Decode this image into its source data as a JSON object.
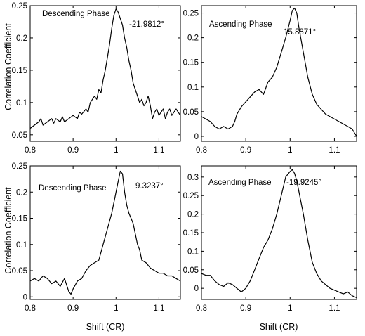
{
  "colors": {
    "line": "#000000",
    "background": "#ffffff"
  },
  "labels": {
    "ylabel_top": "Correlation Coefficient",
    "ylabel_bottom": "Correlation Coefficient",
    "xlabel_left": "Shift (CR)",
    "xlabel_right": "Shift (CR)"
  },
  "chart_data": [
    {
      "type": "line",
      "title": "",
      "xlabel": "",
      "ylabel": "Correlation Coefficient",
      "xlim": [
        0.8,
        1.15
      ],
      "ylim": [
        0.04,
        0.25
      ],
      "xticks": [
        0.8,
        0.9,
        1.0,
        1.1
      ],
      "xtick_labels": [
        "0.8",
        "0.9",
        "1",
        "1.1"
      ],
      "yticks": [
        0.05,
        0.1,
        0.15,
        0.2,
        0.25
      ],
      "ytick_labels": [
        "0.05",
        "0.1",
        "0.15",
        "0.2",
        "0.25"
      ],
      "grid": false,
      "annotations": [
        "Descending Phase",
        "-21.9812°"
      ],
      "series": [
        {
          "x": [
            0.8,
            0.81,
            0.82,
            0.825,
            0.83,
            0.84,
            0.85,
            0.855,
            0.86,
            0.87,
            0.875,
            0.88,
            0.89,
            0.9,
            0.91,
            0.915,
            0.92,
            0.93,
            0.935,
            0.94,
            0.95,
            0.955,
            0.96,
            0.965,
            0.97,
            0.975,
            0.98,
            0.985,
            0.99,
            0.995,
            1.0,
            1.005,
            1.01,
            1.015,
            1.02,
            1.025,
            1.03,
            1.035,
            1.04,
            1.045,
            1.05,
            1.055,
            1.06,
            1.065,
            1.07,
            1.075,
            1.08,
            1.085,
            1.09,
            1.095,
            1.1,
            1.105,
            1.11,
            1.115,
            1.12,
            1.125,
            1.13,
            1.135,
            1.14,
            1.145,
            1.15
          ],
          "y": [
            0.06,
            0.065,
            0.07,
            0.075,
            0.065,
            0.07,
            0.075,
            0.068,
            0.075,
            0.07,
            0.078,
            0.07,
            0.075,
            0.08,
            0.075,
            0.085,
            0.082,
            0.09,
            0.085,
            0.1,
            0.11,
            0.105,
            0.12,
            0.115,
            0.135,
            0.15,
            0.17,
            0.19,
            0.215,
            0.235,
            0.245,
            0.24,
            0.23,
            0.22,
            0.2,
            0.185,
            0.165,
            0.15,
            0.13,
            0.12,
            0.11,
            0.1,
            0.105,
            0.095,
            0.1,
            0.11,
            0.095,
            0.075,
            0.085,
            0.09,
            0.08,
            0.085,
            0.09,
            0.075,
            0.085,
            0.09,
            0.08,
            0.085,
            0.09,
            0.085,
            0.08
          ]
        }
      ]
    },
    {
      "type": "line",
      "title": "",
      "xlabel": "",
      "ylabel": "",
      "xlim": [
        0.8,
        1.15
      ],
      "ylim": [
        -0.01,
        0.265
      ],
      "xticks": [
        0.8,
        0.9,
        1.0,
        1.1
      ],
      "xtick_labels": [
        "0.8",
        "0.9",
        "1",
        "1.1"
      ],
      "yticks": [
        0,
        0.05,
        0.1,
        0.15,
        0.2,
        0.25
      ],
      "ytick_labels": [
        "0",
        "0.05",
        "0.1",
        "0.15",
        "0.2",
        "0.25"
      ],
      "grid": false,
      "annotations": [
        "Ascending Phase",
        "15.8871°"
      ],
      "series": [
        {
          "x": [
            0.8,
            0.81,
            0.82,
            0.83,
            0.84,
            0.85,
            0.86,
            0.87,
            0.875,
            0.88,
            0.89,
            0.9,
            0.91,
            0.92,
            0.93,
            0.94,
            0.95,
            0.96,
            0.97,
            0.98,
            0.99,
            1.0,
            1.005,
            1.01,
            1.015,
            1.02,
            1.03,
            1.04,
            1.05,
            1.06,
            1.07,
            1.08,
            1.09,
            1.1,
            1.11,
            1.12,
            1.13,
            1.14,
            1.15
          ],
          "y": [
            0.04,
            0.035,
            0.03,
            0.02,
            0.015,
            0.02,
            0.015,
            0.02,
            0.03,
            0.045,
            0.06,
            0.07,
            0.08,
            0.09,
            0.095,
            0.085,
            0.11,
            0.12,
            0.14,
            0.17,
            0.2,
            0.235,
            0.255,
            0.26,
            0.25,
            0.22,
            0.17,
            0.12,
            0.085,
            0.065,
            0.055,
            0.045,
            0.04,
            0.035,
            0.03,
            0.025,
            0.02,
            0.015,
            0.0
          ]
        }
      ]
    },
    {
      "type": "line",
      "title": "",
      "xlabel": "",
      "ylabel": "Correlation Coefficient",
      "xlim": [
        0.8,
        1.15
      ],
      "ylim": [
        -0.005,
        0.25
      ],
      "xticks": [
        0.8,
        0.9,
        1.0,
        1.1
      ],
      "xtick_labels": [
        "0.8",
        "0.9",
        "1",
        "1.1"
      ],
      "yticks": [
        0,
        0.05,
        0.1,
        0.15,
        0.2,
        0.25
      ],
      "ytick_labels": [
        "0",
        "0.05",
        "0.1",
        "0.15",
        "0.2",
        "0.25"
      ],
      "grid": false,
      "annotations": [
        "Descending Phase",
        "9.3237°"
      ],
      "series": [
        {
          "x": [
            0.8,
            0.81,
            0.82,
            0.83,
            0.84,
            0.85,
            0.86,
            0.87,
            0.88,
            0.89,
            0.895,
            0.9,
            0.91,
            0.92,
            0.93,
            0.94,
            0.95,
            0.96,
            0.97,
            0.98,
            0.99,
            1.0,
            1.005,
            1.01,
            1.015,
            1.02,
            1.025,
            1.03,
            1.035,
            1.04,
            1.045,
            1.05,
            1.055,
            1.06,
            1.07,
            1.08,
            1.09,
            1.1,
            1.11,
            1.12,
            1.13,
            1.14,
            1.15
          ],
          "y": [
            0.03,
            0.035,
            0.03,
            0.04,
            0.035,
            0.025,
            0.03,
            0.02,
            0.035,
            0.01,
            0.005,
            0.015,
            0.03,
            0.035,
            0.05,
            0.06,
            0.065,
            0.07,
            0.1,
            0.13,
            0.16,
            0.2,
            0.22,
            0.24,
            0.235,
            0.2,
            0.175,
            0.16,
            0.15,
            0.14,
            0.12,
            0.1,
            0.09,
            0.07,
            0.065,
            0.055,
            0.05,
            0.045,
            0.045,
            0.04,
            0.04,
            0.035,
            0.03
          ]
        }
      ]
    },
    {
      "type": "line",
      "title": "",
      "xlabel": "Shift (CR)",
      "ylabel": "",
      "xlim": [
        0.8,
        1.15
      ],
      "ylim": [
        -0.03,
        0.33
      ],
      "xticks": [
        0.8,
        0.9,
        1.0,
        1.1
      ],
      "xtick_labels": [
        "0.8",
        "0.9",
        "1",
        "1.1"
      ],
      "yticks": [
        0,
        0.05,
        0.1,
        0.15,
        0.2,
        0.25,
        0.3
      ],
      "ytick_labels": [
        "0",
        "0.05",
        "0.1",
        "0.15",
        "0.2",
        "0.25",
        "0.3"
      ],
      "grid": false,
      "annotations": [
        "Ascending Phase",
        "-19.9245°"
      ],
      "series": [
        {
          "x": [
            0.8,
            0.81,
            0.82,
            0.83,
            0.84,
            0.85,
            0.86,
            0.87,
            0.88,
            0.89,
            0.9,
            0.91,
            0.92,
            0.93,
            0.94,
            0.95,
            0.96,
            0.97,
            0.98,
            0.99,
            1.0,
            1.005,
            1.01,
            1.015,
            1.02,
            1.03,
            1.04,
            1.05,
            1.06,
            1.07,
            1.08,
            1.09,
            1.1,
            1.11,
            1.12,
            1.13,
            1.14,
            1.15
          ],
          "y": [
            0.04,
            0.035,
            0.035,
            0.02,
            0.01,
            0.005,
            0.015,
            0.01,
            0.0,
            -0.01,
            0.0,
            0.02,
            0.05,
            0.08,
            0.11,
            0.13,
            0.16,
            0.2,
            0.25,
            0.3,
            0.315,
            0.32,
            0.31,
            0.29,
            0.26,
            0.2,
            0.13,
            0.07,
            0.04,
            0.02,
            0.01,
            0.0,
            -0.005,
            -0.01,
            -0.015,
            -0.01,
            -0.02,
            -0.025
          ]
        }
      ]
    }
  ]
}
